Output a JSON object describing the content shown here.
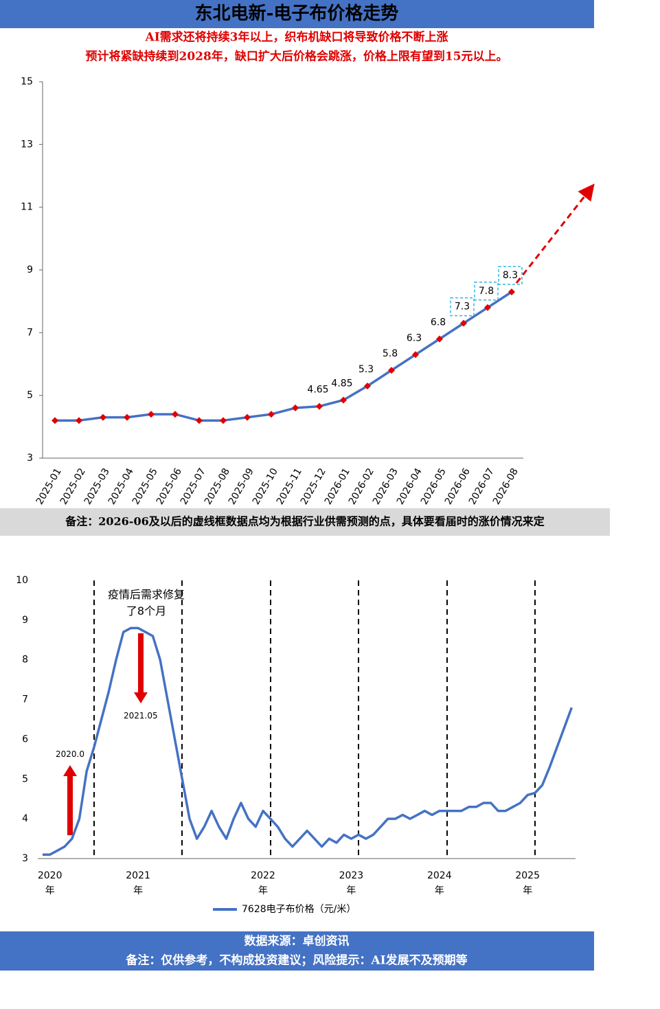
{
  "header": {
    "title": "东北电新-电子布价格走势",
    "subtitle": [
      "AI需求还将持续3年以上，织布机缺口将导致价格不断上涨",
      "预计将紧缺持续到2028年，缺口扩大后价格会跳涨，价格上限有望到15元以上。"
    ]
  },
  "chart_data": [
    {
      "type": "line",
      "color": "#4472c4",
      "marker_color": "#e00000",
      "categories": [
        "2025-01",
        "2025-02",
        "2025-03",
        "2025-04",
        "2025-05",
        "2025-06",
        "2025-07",
        "2025-08",
        "2025-09",
        "2025-10",
        "2025-11",
        "2025-12",
        "2026-01",
        "2026-02",
        "2026-03",
        "2026-04",
        "2026-05",
        "2026-06",
        "2026-07",
        "2026-08"
      ],
      "values": [
        4.2,
        4.2,
        4.3,
        4.3,
        4.4,
        4.4,
        4.2,
        4.2,
        4.3,
        4.4,
        4.6,
        4.65,
        4.85,
        5.3,
        5.8,
        6.3,
        6.8,
        7.3,
        7.8,
        8.3
      ],
      "value_labels": [
        null,
        null,
        null,
        null,
        null,
        null,
        null,
        null,
        null,
        null,
        null,
        "4.65",
        "4.85",
        "5.3",
        "5.8",
        "6.3",
        "6.8",
        "7.3",
        "7.8",
        "8.3"
      ],
      "forecast_start": "2026-06",
      "ylim": [
        3,
        15
      ],
      "yticks": [
        3,
        5,
        7,
        9,
        11,
        13,
        15
      ]
    },
    {
      "type": "line",
      "color": "#4472c4",
      "series_name": "7628电子布价格（元/米）",
      "categories": [
        null,
        "2020年",
        null,
        null,
        null,
        null,
        null,
        null,
        null,
        null,
        null,
        null,
        null,
        "2021年",
        null,
        null,
        null,
        null,
        null,
        null,
        null,
        null,
        null,
        null,
        null,
        null,
        null,
        null,
        null,
        null,
        "2022年",
        null,
        null,
        null,
        null,
        null,
        null,
        null,
        null,
        null,
        null,
        null,
        "2023年",
        null,
        null,
        null,
        null,
        null,
        null,
        null,
        null,
        null,
        null,
        null,
        "2024年",
        null,
        null,
        null,
        null,
        null,
        null,
        null,
        null,
        null,
        null,
        null,
        "2025年",
        null,
        null,
        null,
        null,
        null,
        null
      ],
      "values": [
        3.1,
        3.1,
        3.2,
        3.3,
        3.5,
        4.0,
        5.2,
        5.8,
        6.5,
        7.2,
        8.0,
        8.7,
        8.8,
        8.8,
        8.7,
        8.6,
        8.0,
        7.0,
        6.0,
        5.0,
        4.0,
        3.5,
        3.8,
        4.2,
        3.8,
        3.5,
        4.0,
        4.4,
        4.0,
        3.8,
        4.2,
        4.0,
        3.8,
        3.5,
        3.3,
        3.5,
        3.7,
        3.5,
        3.3,
        3.5,
        3.4,
        3.6,
        3.5,
        3.6,
        3.5,
        3.6,
        3.8,
        4.0,
        4.0,
        4.1,
        4.0,
        4.1,
        4.2,
        4.1,
        4.2,
        4.2,
        4.2,
        4.2,
        4.3,
        4.3,
        4.4,
        4.4,
        4.2,
        4.2,
        4.3,
        4.4,
        4.6,
        4.65,
        4.85,
        5.3,
        5.8,
        6.3,
        6.8
      ],
      "annotations": [
        "疫情后需求修复了8个月",
        "2021.05",
        "2020.0"
      ],
      "ylim": [
        3,
        10
      ],
      "yticks": [
        3,
        4,
        5,
        6,
        7,
        8,
        9,
        10
      ]
    }
  ],
  "note": "备注：2026-06及以后的虚线框数据点均为根据行业供需预测的点，具体要看届时的涨价情况来定",
  "footer": {
    "source": "数据来源：卓创资讯",
    "disclaimer": "备注：仅供参考，不构成投资建议；风险提示：AI发展不及预期等"
  }
}
